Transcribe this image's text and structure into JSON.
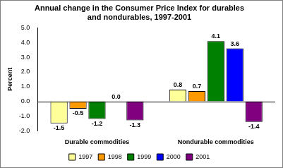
{
  "chart_data": {
    "type": "bar",
    "title": "Annual change in the Consumer Price Index for durables and nondurables, 1997-2001",
    "categories": [
      "Durable commodities",
      "Nondurable commodities"
    ],
    "series": [
      {
        "name": "1997",
        "color": "#ffff99",
        "values": [
          -1.5,
          0.8
        ],
        "value_labels": [
          "-1.5",
          "0.8"
        ]
      },
      {
        "name": "1998",
        "color": "#ff9900",
        "values": [
          -0.5,
          0.7
        ],
        "value_labels": [
          "-0.5",
          "0.7"
        ]
      },
      {
        "name": "1999",
        "color": "#008000",
        "values": [
          -1.2,
          4.1
        ],
        "value_labels": [
          "-1.2",
          "4.1"
        ]
      },
      {
        "name": "2000",
        "color": "#0000ff",
        "values": [
          0.0,
          3.6
        ],
        "value_labels": [
          "0.0",
          "3.6"
        ]
      },
      {
        "name": "2001",
        "color": "#800080",
        "values": [
          -1.3,
          -1.4
        ],
        "value_labels": [
          "-1.3",
          "-1.4"
        ]
      }
    ],
    "y_label": "Percent",
    "ylim": [
      -2,
      5
    ],
    "yticks": [
      {
        "value": -2,
        "label": "-2.0"
      },
      {
        "value": -1,
        "label": "-1.0"
      },
      {
        "value": 0,
        "label": "0.0"
      },
      {
        "value": 1,
        "label": "1.0"
      },
      {
        "value": 2,
        "label": "2.0"
      },
      {
        "value": 3,
        "label": "3.0"
      },
      {
        "value": 4,
        "label": "4.0"
      },
      {
        "value": 5,
        "label": "5.0"
      }
    ],
    "grid": false,
    "legend": "bottom",
    "data_labels": true
  }
}
